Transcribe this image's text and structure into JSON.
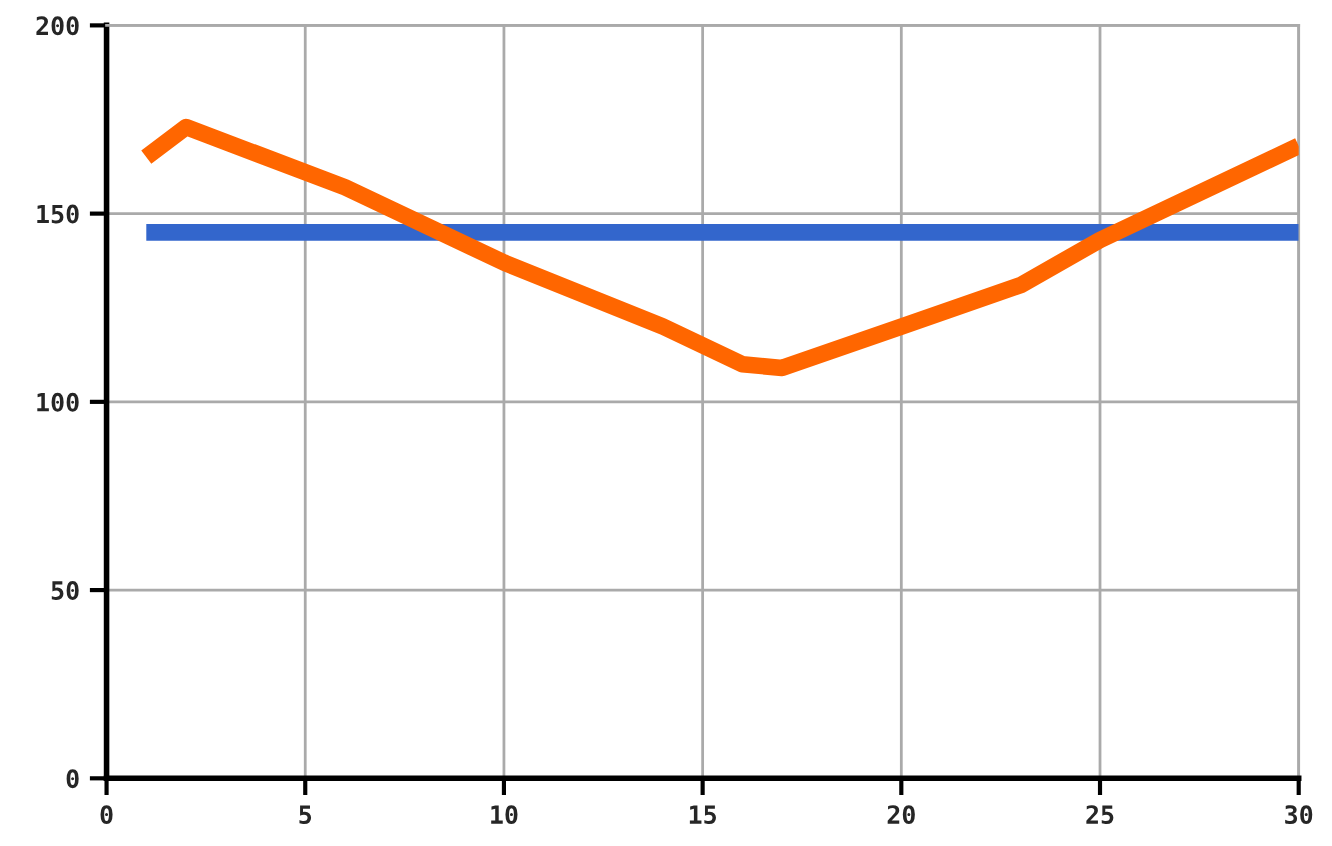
{
  "chart_data": {
    "type": "line",
    "series": [
      {
        "color": "#3366cc",
        "x": [
          1,
          30
        ],
        "values": [
          145,
          145
        ]
      },
      {
        "color": "#ff6600",
        "x": [
          1,
          2,
          6,
          10,
          14,
          16,
          17,
          20,
          23,
          25,
          30
        ],
        "values": [
          165,
          173,
          157,
          137,
          120,
          110,
          109,
          120,
          131,
          143,
          168
        ]
      }
    ],
    "xlim": [
      0,
      30
    ],
    "xticks": [
      0,
      5,
      10,
      15,
      20,
      25,
      30
    ],
    "ylim": [
      0,
      200
    ],
    "yticks": [
      0,
      50,
      100,
      150,
      200
    ],
    "grid": true,
    "legend": false,
    "marker": "none",
    "line_style": "solid"
  }
}
